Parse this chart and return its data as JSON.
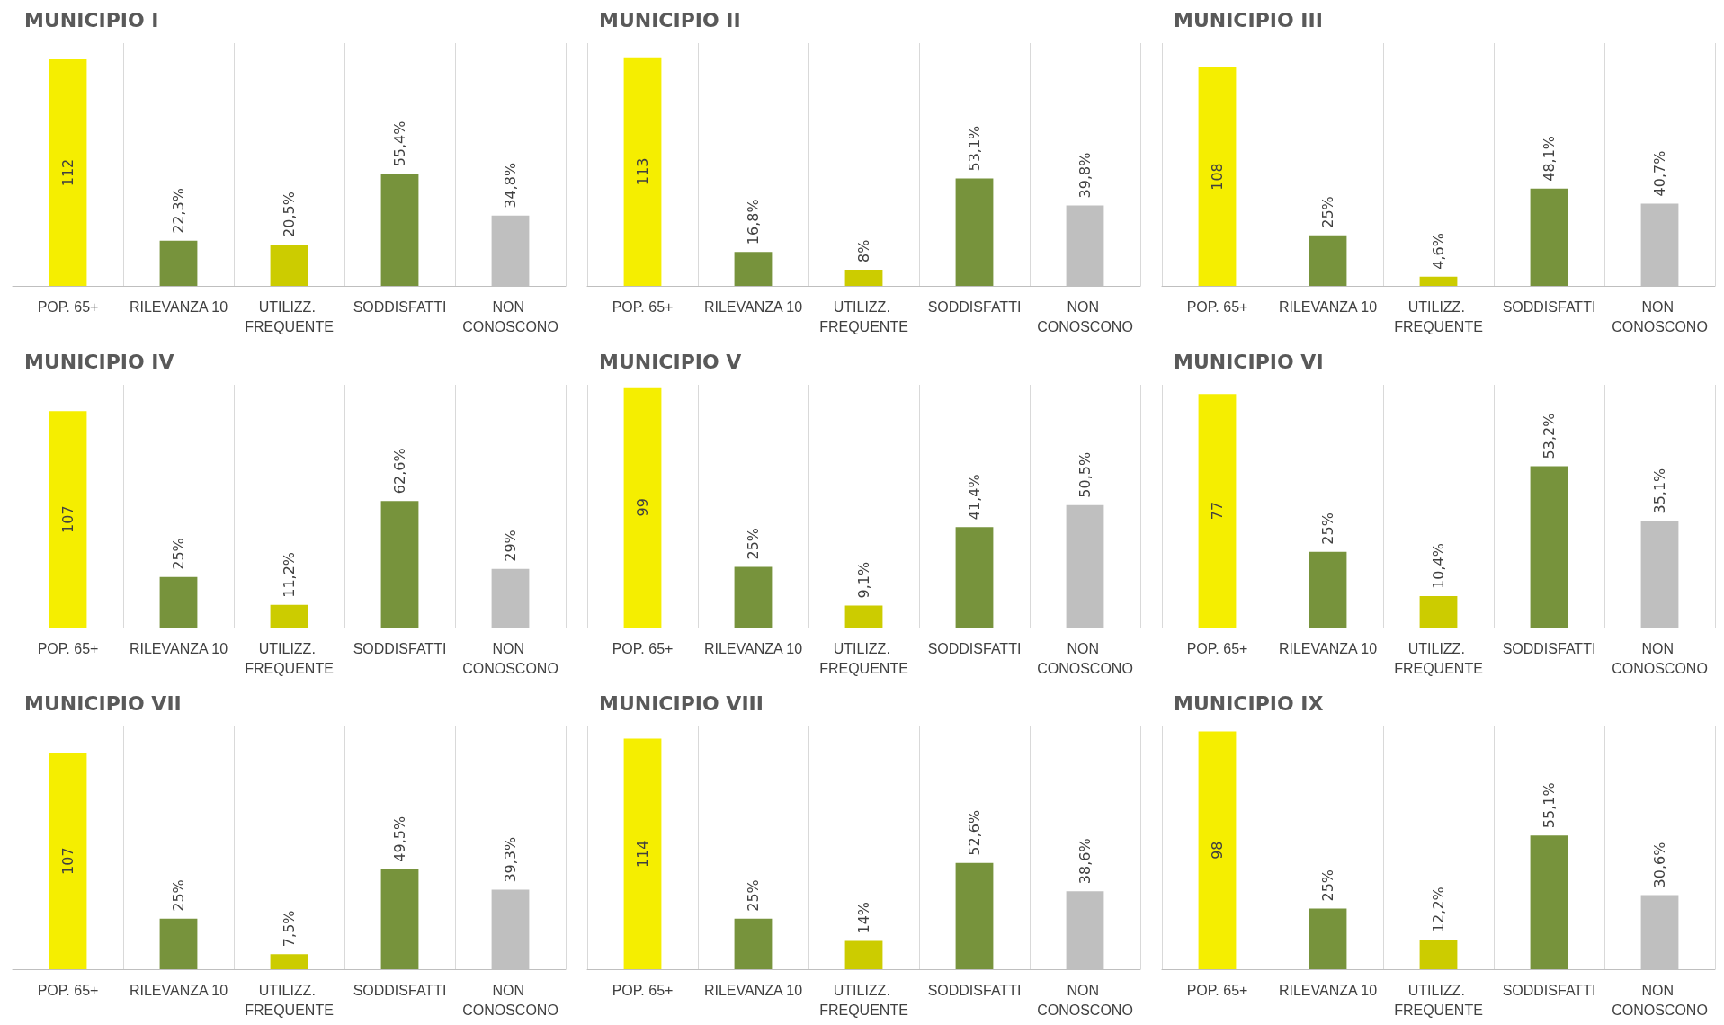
{
  "chart_data": [
    {
      "type": "bar",
      "title": "MUNICIPIO I",
      "categories": [
        "POP. 65+",
        "RILEVANZA 10",
        "UTILIZZ. FREQUENTE",
        "SODDISFATTI",
        "NON CONOSCONO"
      ],
      "values": [
        112,
        22.3,
        20.5,
        55.4,
        34.8
      ],
      "value_labels": [
        "112",
        "22,3%",
        "20,5%",
        "55,4%",
        "34,8%"
      ],
      "colors": [
        "#f5ee00",
        "#77933c",
        "#cccc00",
        "#77933c",
        "#bfbfbf"
      ],
      "grid": "x"
    },
    {
      "type": "bar",
      "title": "MUNICIPIO II",
      "categories": [
        "POP. 65+",
        "RILEVANZA 10",
        "UTILIZZ. FREQUENTE",
        "SODDISFATTI",
        "NON CONOSCONO"
      ],
      "values": [
        113,
        16.8,
        8,
        53.1,
        39.8
      ],
      "value_labels": [
        "113",
        "16,8%",
        "8%",
        "53,1%",
        "39,8%"
      ],
      "colors": [
        "#f5ee00",
        "#77933c",
        "#cccc00",
        "#77933c",
        "#bfbfbf"
      ],
      "grid": "x"
    },
    {
      "type": "bar",
      "title": "MUNICIPIO III",
      "categories": [
        "POP. 65+",
        "RILEVANZA 10",
        "UTILIZZ. FREQUENTE",
        "SODDISFATTI",
        "NON CONOSCONO"
      ],
      "values": [
        108,
        25,
        4.6,
        48.1,
        40.7
      ],
      "value_labels": [
        "108",
        "25%",
        "4,6%",
        "48,1%",
        "40,7%"
      ],
      "colors": [
        "#f5ee00",
        "#77933c",
        "#cccc00",
        "#77933c",
        "#bfbfbf"
      ],
      "grid": "x"
    },
    {
      "type": "bar",
      "title": "MUNICIPIO IV",
      "categories": [
        "POP. 65+",
        "RILEVANZA 10",
        "UTILIZZ. FREQUENTE",
        "SODDISFATTI",
        "NON CONOSCONO"
      ],
      "values": [
        107,
        25,
        11.2,
        62.6,
        29
      ],
      "value_labels": [
        "107",
        "25%",
        "11,2%",
        "62,6%",
        "29%"
      ],
      "colors": [
        "#f5ee00",
        "#77933c",
        "#cccc00",
        "#77933c",
        "#bfbfbf"
      ],
      "grid": "x"
    },
    {
      "type": "bar",
      "title": "MUNICIPIO V",
      "categories": [
        "POP. 65+",
        "RILEVANZA 10",
        "UTILIZZ. FREQUENTE",
        "SODDISFATTI",
        "NON CONOSCONO"
      ],
      "values": [
        99,
        25,
        9.1,
        41.4,
        50.5
      ],
      "value_labels": [
        "99",
        "25%",
        "9,1%",
        "41,4%",
        "50,5%"
      ],
      "colors": [
        "#f5ee00",
        "#77933c",
        "#cccc00",
        "#77933c",
        "#bfbfbf"
      ],
      "grid": "x"
    },
    {
      "type": "bar",
      "title": "MUNICIPIO VI",
      "categories": [
        "POP. 65+",
        "RILEVANZA 10",
        "UTILIZZ. FREQUENTE",
        "SODDISFATTI",
        "NON CONOSCONO"
      ],
      "values": [
        77,
        25,
        10.4,
        53.2,
        35.1
      ],
      "value_labels": [
        "77",
        "25%",
        "10,4%",
        "53,2%",
        "35,1%"
      ],
      "colors": [
        "#f5ee00",
        "#77933c",
        "#cccc00",
        "#77933c",
        "#bfbfbf"
      ],
      "grid": "x"
    },
    {
      "type": "bar",
      "title": "MUNICIPIO VII",
      "categories": [
        "POP. 65+",
        "RILEVANZA 10",
        "UTILIZZ. FREQUENTE",
        "SODDISFATTI",
        "NON CONOSCONO"
      ],
      "values": [
        107,
        25,
        7.5,
        49.5,
        39.3
      ],
      "value_labels": [
        "107",
        "25%",
        "7,5%",
        "49,5%",
        "39,3%"
      ],
      "colors": [
        "#f5ee00",
        "#77933c",
        "#cccc00",
        "#77933c",
        "#bfbfbf"
      ],
      "grid": "x"
    },
    {
      "type": "bar",
      "title": "MUNICIPIO VIII",
      "categories": [
        "POP. 65+",
        "RILEVANZA 10",
        "UTILIZZ. FREQUENTE",
        "SODDISFATTI",
        "NON CONOSCONO"
      ],
      "values": [
        114,
        25,
        14,
        52.6,
        38.6
      ],
      "value_labels": [
        "114",
        "25%",
        "14%",
        "52,6%",
        "38,6%"
      ],
      "colors": [
        "#f5ee00",
        "#77933c",
        "#cccc00",
        "#77933c",
        "#bfbfbf"
      ],
      "grid": "x"
    },
    {
      "type": "bar",
      "title": "MUNICIPIO IX",
      "categories": [
        "POP. 65+",
        "RILEVANZA 10",
        "UTILIZZ. FREQUENTE",
        "SODDISFATTI",
        "NON CONOSCONO"
      ],
      "values": [
        98,
        25,
        12.2,
        55.1,
        30.6
      ],
      "value_labels": [
        "98",
        "25%",
        "12,2%",
        "55,1%",
        "30,6%"
      ],
      "colors": [
        "#f5ee00",
        "#77933c",
        "#cccc00",
        "#77933c",
        "#bfbfbf"
      ],
      "grid": "x"
    }
  ]
}
